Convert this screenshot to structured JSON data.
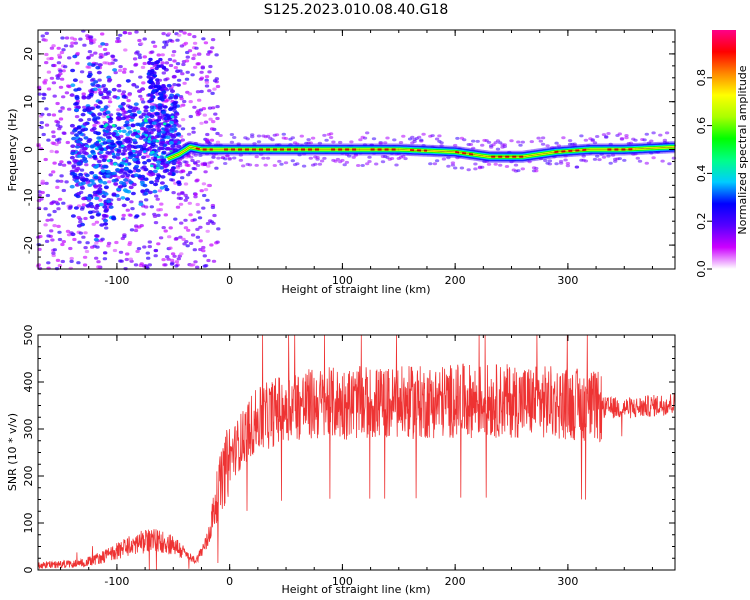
{
  "title": "S125.2023.010.08.40.G18",
  "chart_data": [
    {
      "type": "heatmap",
      "xlabel": "Height of straight line (km)",
      "ylabel": "Frequency (Hz)",
      "xlim": [
        -170,
        395
      ],
      "ylim": [
        -25,
        25
      ],
      "x_ticks": [
        -100,
        0,
        100,
        200,
        300
      ],
      "y_ticks": [
        -20,
        -10,
        0,
        10,
        20
      ],
      "colorbar": {
        "label": "Normalized spectral amplitude",
        "range": [
          0,
          1
        ],
        "ticks": [
          0.0,
          0.2,
          0.4,
          0.6,
          0.8
        ],
        "colors": [
          "#ffffff",
          "#cc00ff",
          "#5500ff",
          "#0000ff",
          "#00ccff",
          "#00ff88",
          "#00ff00",
          "#aaff00",
          "#ffff00",
          "#ff8800",
          "#ff0000",
          "#ff0088"
        ]
      },
      "ridge": {
        "x": [
          -55,
          -45,
          -35,
          -25,
          0,
          50,
          100,
          150,
          200,
          230,
          260,
          290,
          320,
          350,
          395
        ],
        "freq": [
          -2.0,
          -1.0,
          0.5,
          0.0,
          0.0,
          0.0,
          0.0,
          0.0,
          -0.5,
          -1.5,
          -1.5,
          -0.5,
          0.0,
          0.0,
          0.5
        ]
      }
    },
    {
      "type": "line",
      "xlabel": "Height of straight line (km)",
      "ylabel": "SNR (10 * v/v)",
      "xlim": [
        -170,
        395
      ],
      "ylim": [
        0,
        500
      ],
      "x_ticks": [
        -100,
        0,
        100,
        200,
        300
      ],
      "y_ticks": [
        0,
        100,
        200,
        300,
        400,
        500
      ],
      "series": [
        {
          "color": "#ee3333",
          "x": [
            -170,
            -150,
            -130,
            -110,
            -90,
            -70,
            -50,
            -40,
            -30,
            -20,
            -10,
            0,
            20,
            50,
            100,
            150,
            200,
            250,
            300,
            330,
            360,
            395
          ],
          "values": [
            10,
            12,
            15,
            30,
            50,
            65,
            55,
            35,
            20,
            60,
            170,
            240,
            310,
            350,
            355,
            355,
            360,
            360,
            355,
            345,
            345,
            355
          ]
        }
      ]
    }
  ]
}
